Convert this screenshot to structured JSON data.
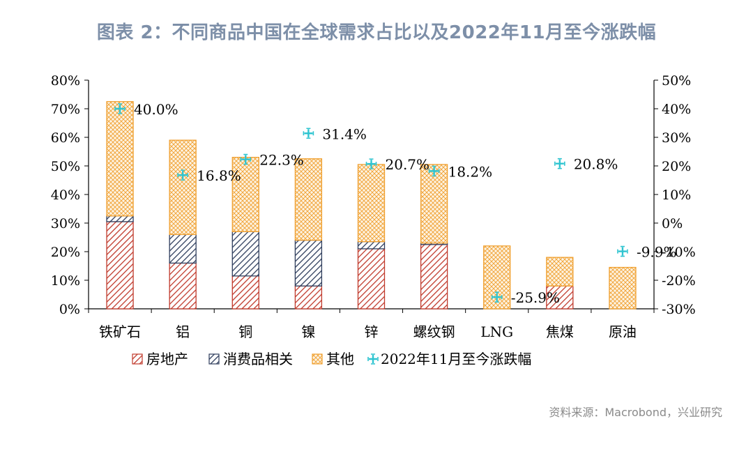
{
  "title": "图表 2：不同商品中国在全球需求占比以及2022年11月至今涨跌幅",
  "source": "资料来源：Macrobond，兴业研究",
  "chart_data": {
    "type": "bar",
    "stacked": true,
    "categories": [
      "铁矿石",
      "铝",
      "铜",
      "镍",
      "锌",
      "螺纹钢",
      "LNG",
      "焦煤",
      "原油"
    ],
    "series": [
      {
        "name": "房地产",
        "values": [
          30.5,
          16,
          11.5,
          8,
          21,
          22.5,
          0,
          8,
          0
        ],
        "color": "#c0392b",
        "pattern": "diag-red"
      },
      {
        "name": "消费品相关",
        "values": [
          2,
          10,
          15.5,
          16,
          2.5,
          0.5,
          0,
          0,
          0
        ],
        "color": "#2e3d5c",
        "pattern": "diag-navy"
      },
      {
        "name": "其他",
        "values": [
          40,
          33,
          26,
          28.5,
          27,
          27.5,
          22,
          10,
          14.5
        ],
        "color": "#f0a030",
        "pattern": "cross-orange"
      },
      {
        "name": "2022年11月至今涨跌幅",
        "axis": "right",
        "values": [
          40.0,
          16.8,
          22.3,
          31.4,
          20.7,
          18.2,
          -25.9,
          20.8,
          -9.9
        ],
        "labels": [
          "40.0%",
          "16.8%",
          "22.3%",
          "31.4%",
          "20.7%",
          "18.2%",
          "-25.9%",
          "20.8%",
          "-9.9%"
        ],
        "color": "#2ec4d0",
        "marker": "cross"
      }
    ],
    "y_left": {
      "ylim": [
        0,
        80
      ],
      "ticks": [
        "0%",
        "10%",
        "20%",
        "30%",
        "40%",
        "50%",
        "60%",
        "70%",
        "80%"
      ]
    },
    "y_right": {
      "ylim": [
        -30,
        50
      ],
      "ticks": [
        "-30%",
        "-20%",
        "-10%",
        "0%",
        "10%",
        "20%",
        "30%",
        "40%",
        "50%"
      ]
    },
    "grid": false,
    "legend_position": "bottom"
  }
}
